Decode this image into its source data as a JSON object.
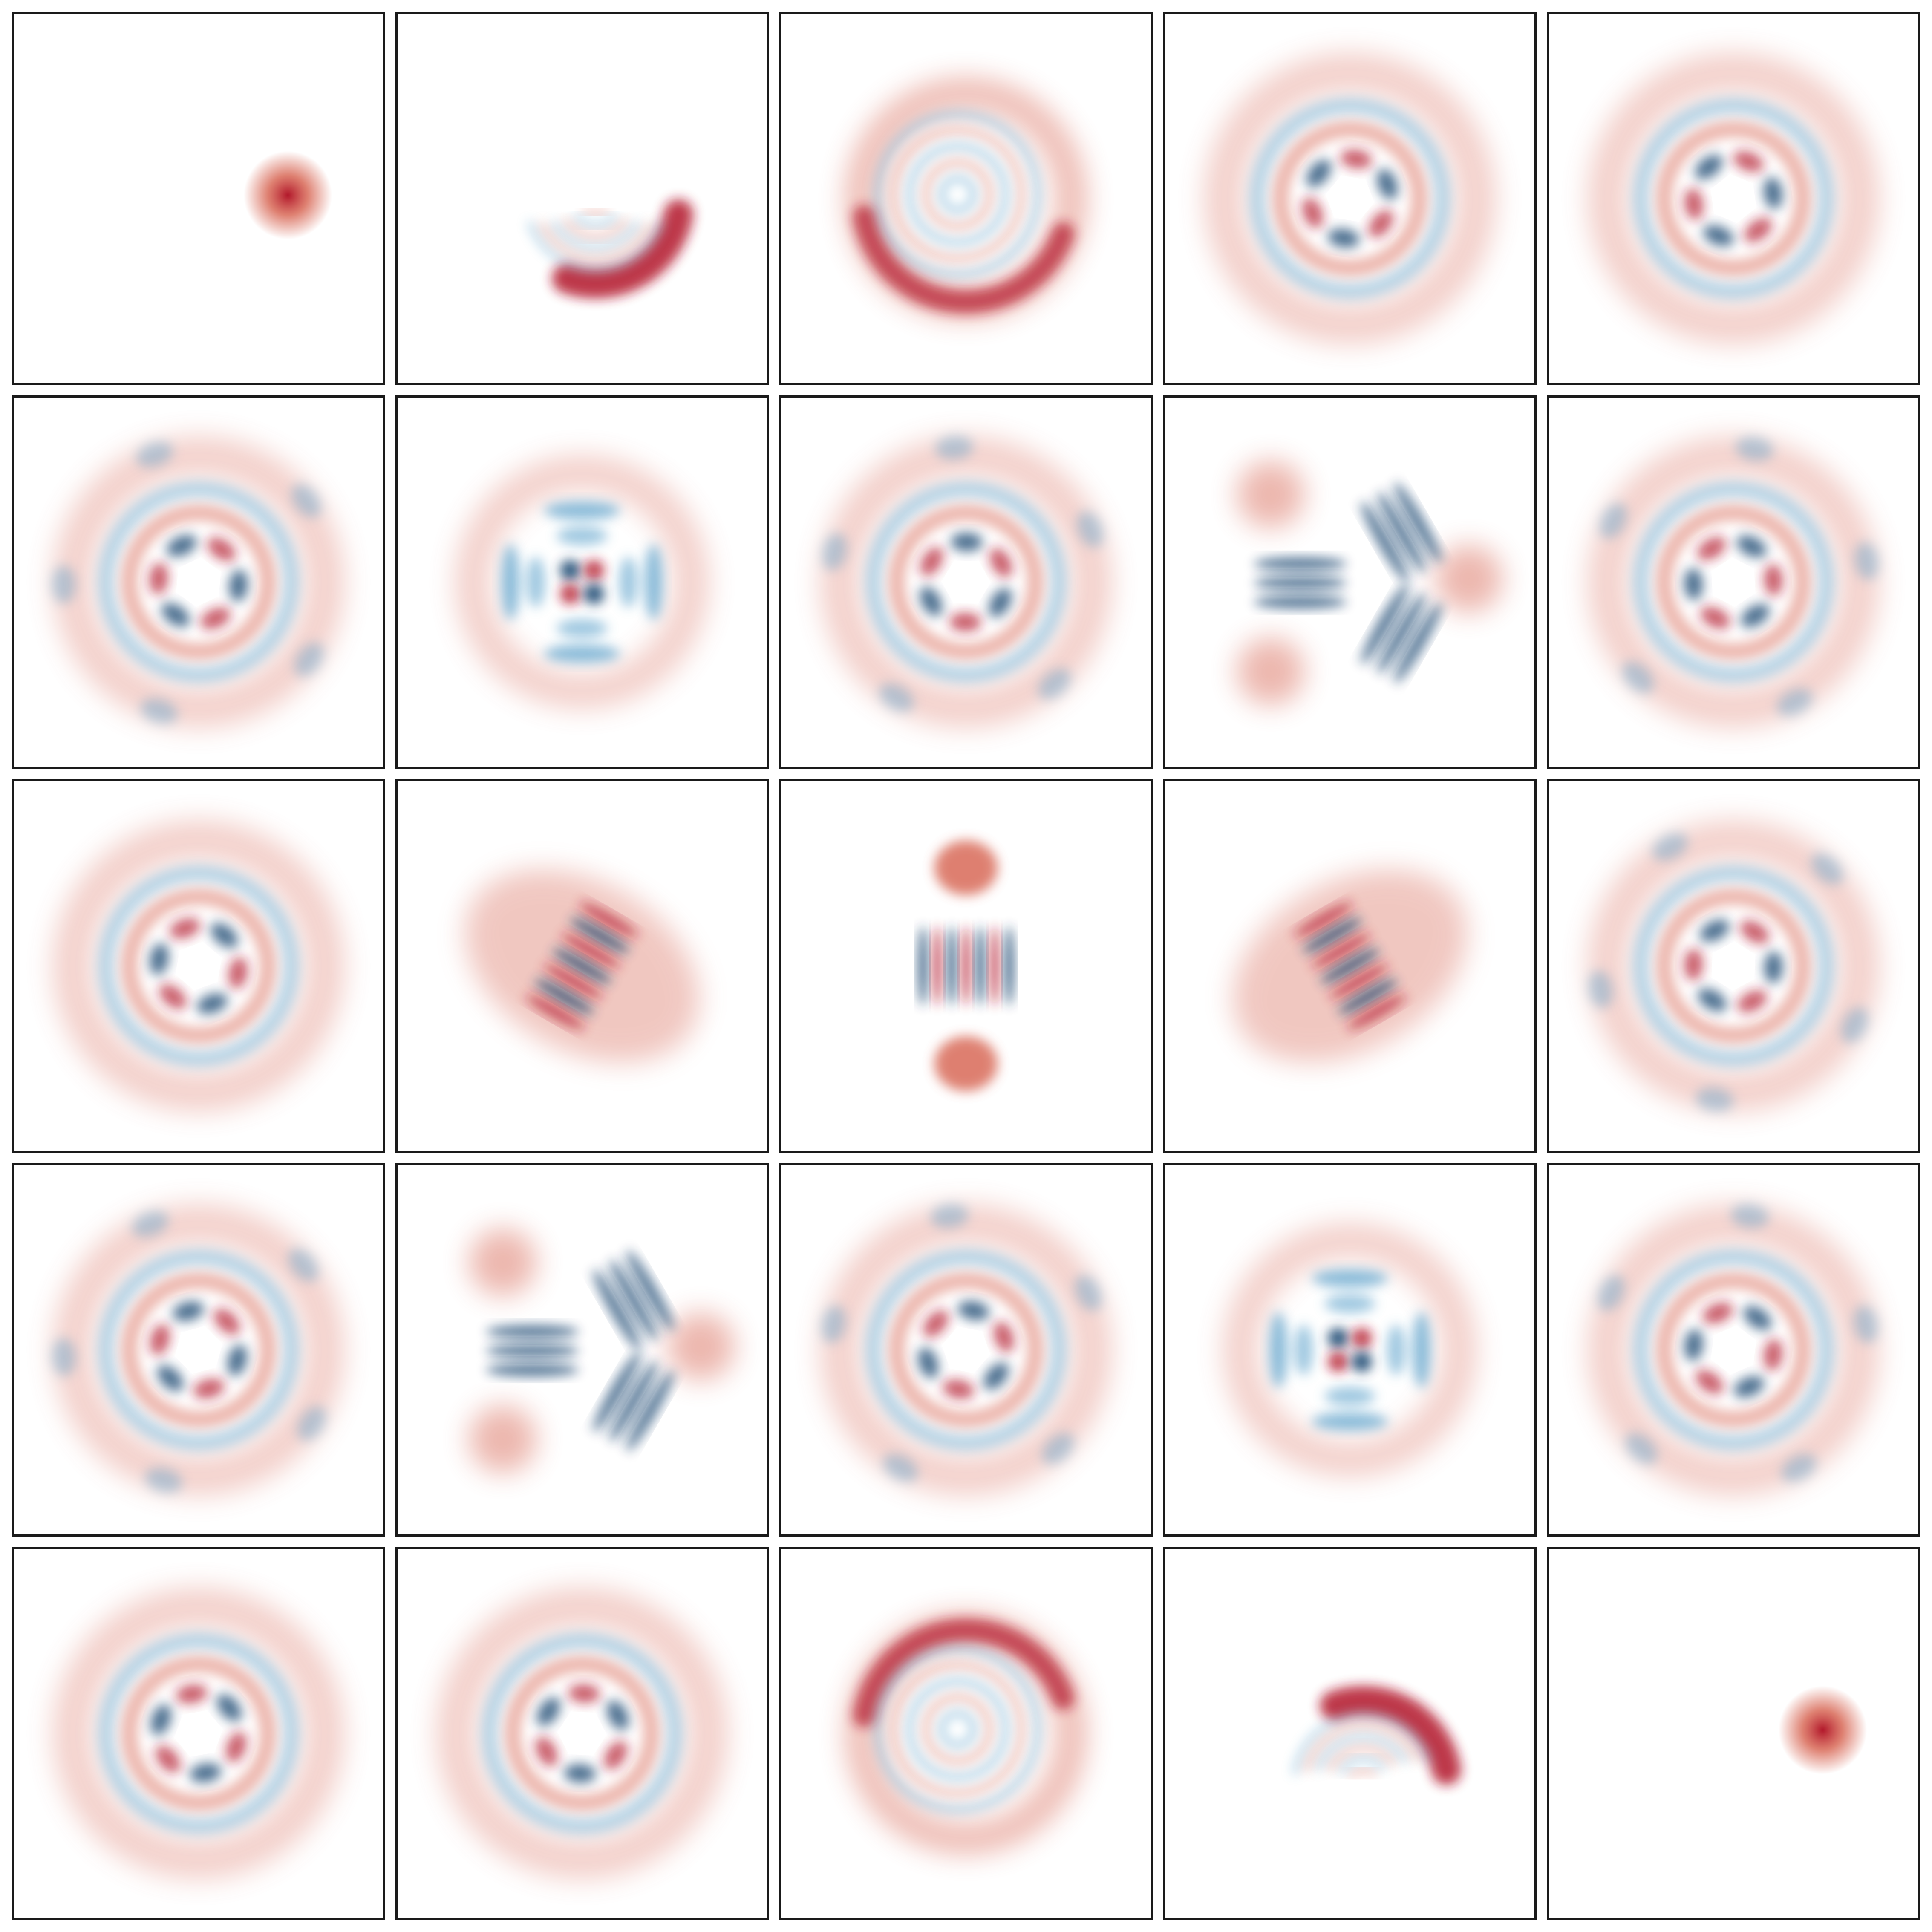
{
  "figure": {
    "rows": 5,
    "cols": 5,
    "colormap": {
      "negative": "#053061",
      "mid_negative": "#4393c3",
      "zero": "#f7f7f7",
      "mid_positive": "#d6604d",
      "positive": "#b2182b"
    },
    "panels": [
      {
        "pattern": "gaussian-blob",
        "icon": "red-gaussian-blob"
      },
      {
        "pattern": "crescent-with-arcs",
        "icon": "red-crescent-blue-arcs"
      },
      {
        "pattern": "spiral-rings",
        "icon": "interference-spiral"
      },
      {
        "pattern": "rings-with-flower",
        "icon": "interference-rings"
      },
      {
        "pattern": "flower-rings",
        "icon": "interference-flower"
      },
      {
        "pattern": "pentagonal-flower",
        "icon": "interference-flower"
      },
      {
        "pattern": "square-lattice",
        "icon": "square-interference-lattice"
      },
      {
        "pattern": "pentagonal-flower",
        "icon": "interference-flower"
      },
      {
        "pattern": "triangle-stripes",
        "icon": "triangular-interference"
      },
      {
        "pattern": "pentagonal-flower",
        "icon": "interference-flower"
      },
      {
        "pattern": "flower-rings",
        "icon": "interference-flower"
      },
      {
        "pattern": "diagonal-stripes",
        "icon": "diagonal-interference"
      },
      {
        "pattern": "vertical-stripes-two-blobs",
        "icon": "two-blob-fringes"
      },
      {
        "pattern": "diagonal-stripes",
        "icon": "diagonal-interference"
      },
      {
        "pattern": "pentagonal-flower",
        "icon": "interference-flower"
      },
      {
        "pattern": "pentagonal-flower",
        "icon": "interference-flower"
      },
      {
        "pattern": "triangle-stripes",
        "icon": "triangular-interference"
      },
      {
        "pattern": "pentagonal-flower",
        "icon": "interference-flower"
      },
      {
        "pattern": "square-lattice",
        "icon": "square-interference-lattice"
      },
      {
        "pattern": "pentagonal-flower",
        "icon": "interference-flower"
      },
      {
        "pattern": "flower-rings",
        "icon": "interference-flower"
      },
      {
        "pattern": "rings-with-flower",
        "icon": "interference-rings"
      },
      {
        "pattern": "spiral-rings",
        "icon": "interference-spiral"
      },
      {
        "pattern": "crescent-with-arcs",
        "icon": "red-crescent-blue-arcs"
      },
      {
        "pattern": "gaussian-blob",
        "icon": "red-gaussian-blob"
      }
    ]
  }
}
